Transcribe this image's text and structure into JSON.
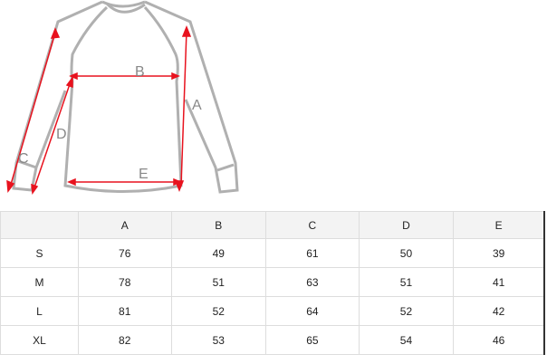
{
  "diagram": {
    "labels": [
      "A",
      "B",
      "C",
      "D",
      "E"
    ],
    "line_color": "#e8121e",
    "outline_color": "#b0b0b0"
  },
  "table": {
    "headers": [
      "",
      "A",
      "B",
      "C",
      "D",
      "E"
    ],
    "rows": [
      [
        "S",
        "76",
        "49",
        "61",
        "50",
        "39"
      ],
      [
        "M",
        "78",
        "51",
        "63",
        "51",
        "41"
      ],
      [
        "L",
        "81",
        "52",
        "64",
        "52",
        "42"
      ],
      [
        "XL",
        "82",
        "53",
        "65",
        "54",
        "46"
      ]
    ]
  }
}
